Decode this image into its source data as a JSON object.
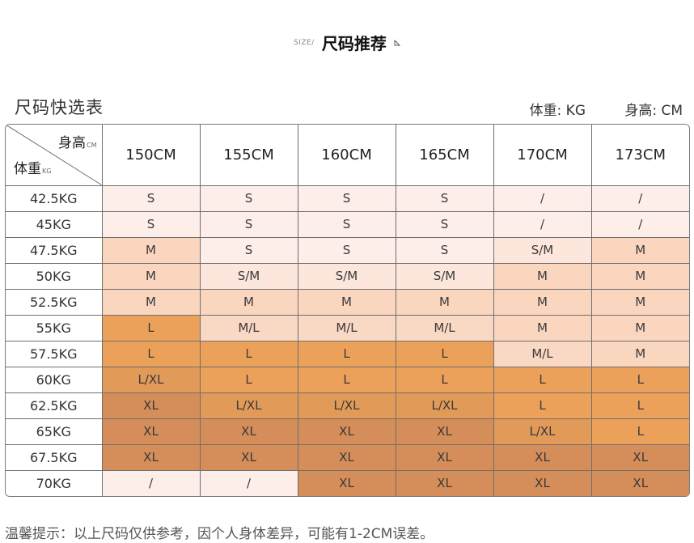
{
  "heading": {
    "prefix": "SIZE/",
    "title": "尺码推荐"
  },
  "subheader": {
    "table_title": "尺码快选表",
    "weight_unit": "体重: KG",
    "height_unit": "身高: CM"
  },
  "corner": {
    "height_label": "身高",
    "height_unit": "CM",
    "weight_label": "体重",
    "weight_unit": "KG"
  },
  "columns": [
    "150CM",
    "155CM",
    "160CM",
    "165CM",
    "170CM",
    "173CM"
  ],
  "rows": [
    {
      "weight": "42.5KG",
      "cells": [
        "S",
        "S",
        "S",
        "S",
        "/",
        "/"
      ]
    },
    {
      "weight": "45KG",
      "cells": [
        "S",
        "S",
        "S",
        "S",
        "/",
        "/"
      ]
    },
    {
      "weight": "47.5KG",
      "cells": [
        "M",
        "S",
        "S",
        "S",
        "S/M",
        "M"
      ]
    },
    {
      "weight": "50KG",
      "cells": [
        "M",
        "S/M",
        "S/M",
        "S/M",
        "M",
        "M"
      ]
    },
    {
      "weight": "52.5KG",
      "cells": [
        "M",
        "M",
        "M",
        "M",
        "M",
        "M"
      ]
    },
    {
      "weight": "55KG",
      "cells": [
        "L",
        "M/L",
        "M/L",
        "M/L",
        "M",
        "M"
      ]
    },
    {
      "weight": "57.5KG",
      "cells": [
        "L",
        "L",
        "L",
        "L",
        "M/L",
        "M"
      ]
    },
    {
      "weight": "60KG",
      "cells": [
        "L/XL",
        "L",
        "L",
        "L",
        "L",
        "L"
      ]
    },
    {
      "weight": "62.5KG",
      "cells": [
        "XL",
        "L/XL",
        "L/XL",
        "L/XL",
        "L",
        "L"
      ]
    },
    {
      "weight": "65KG",
      "cells": [
        "XL",
        "XL",
        "XL",
        "XL",
        "L/XL",
        "L"
      ]
    },
    {
      "weight": "67.5KG",
      "cells": [
        "XL",
        "XL",
        "XL",
        "XL",
        "XL",
        "XL"
      ]
    },
    {
      "weight": "70KG",
      "cells": [
        "/",
        "/",
        "XL",
        "XL",
        "XL",
        "XL"
      ]
    }
  ],
  "size_colors": {
    "S": "#fdeeea",
    "/": "#fdeeea",
    "S/M": "#fde6dc",
    "M": "#fbd6bf",
    "M/L": "#f9d8c4",
    "L": "#eca15b",
    "L/XL": "#e29a58",
    "XL": "#d58d59"
  },
  "footer": "温馨提示：以上尺码仅供参考，因个人身体差异，可能有1-2CM误差。"
}
